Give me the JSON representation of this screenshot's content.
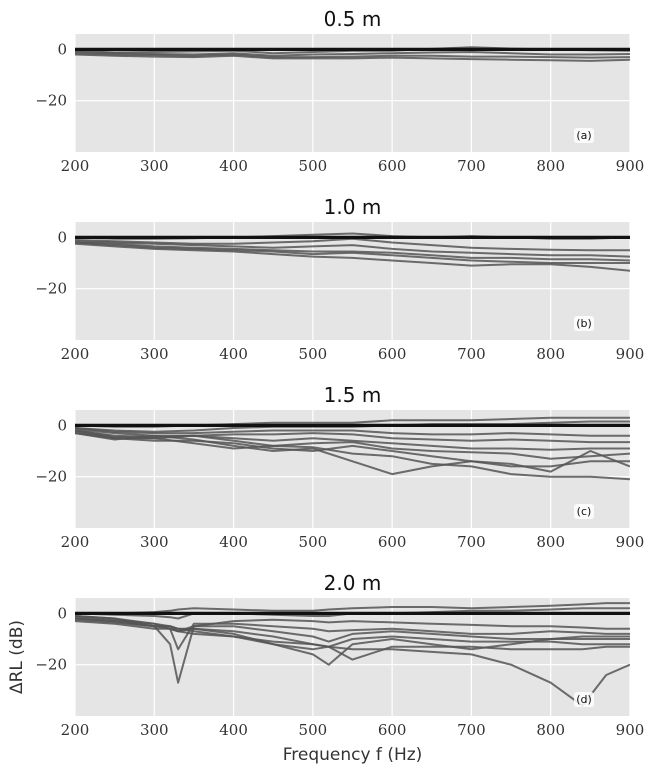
{
  "colors": {
    "panel_bg": "#e5e5e5",
    "grid": "#ffffff",
    "reference_line": "#111111",
    "series_line": "#555555"
  },
  "chart_data": [
    {
      "type": "line",
      "title": "0.5 m",
      "panel_label": "(a)",
      "xlabel": "",
      "ylabel": "",
      "xlim": [
        200,
        900
      ],
      "ylim": [
        -40,
        6
      ],
      "grid": true,
      "xticks": [
        200,
        300,
        400,
        500,
        600,
        700,
        800,
        900
      ],
      "yticks": [
        0,
        -20
      ],
      "ytick_labels": [
        "0",
        "−20"
      ],
      "x": [
        200,
        250,
        300,
        350,
        400,
        450,
        500,
        550,
        600,
        650,
        700,
        750,
        800,
        850,
        900
      ],
      "reference": [
        0,
        0,
        0,
        0,
        0,
        0,
        0,
        0,
        0,
        0,
        0,
        0,
        0,
        0,
        0
      ],
      "series": [
        {
          "values": [
            -0.5,
            -1.2,
            -1.0,
            -0.8,
            -0.5,
            -1.5,
            -1.0,
            -0.5,
            -0.5,
            0.2,
            0.8,
            0.3,
            0,
            -0.3,
            -0.5
          ]
        },
        {
          "values": [
            -1.0,
            -1.5,
            -1.8,
            -2.0,
            -1.5,
            -2.5,
            -2.0,
            -1.8,
            -1.5,
            -1.2,
            -1.0,
            -1.5,
            -2.0,
            -2.0,
            -1.8
          ]
        },
        {
          "values": [
            -1.5,
            -2.0,
            -2.2,
            -2.5,
            -2.0,
            -3.0,
            -3.0,
            -2.8,
            -2.5,
            -2.5,
            -2.8,
            -2.8,
            -3.0,
            -3.2,
            -3.0
          ]
        },
        {
          "values": [
            -2.0,
            -2.5,
            -2.8,
            -3.0,
            -2.5,
            -3.5,
            -3.5,
            -3.5,
            -3.2,
            -3.5,
            -3.8,
            -4.0,
            -4.2,
            -4.5,
            -4.0
          ]
        }
      ]
    },
    {
      "type": "line",
      "title": "1.0 m",
      "panel_label": "(b)",
      "xlabel": "",
      "ylabel": "",
      "xlim": [
        200,
        900
      ],
      "ylim": [
        -40,
        6
      ],
      "grid": true,
      "xticks": [
        200,
        300,
        400,
        500,
        600,
        700,
        800,
        900
      ],
      "yticks": [
        0,
        -20
      ],
      "ytick_labels": [
        "0",
        "−20"
      ],
      "x": [
        200,
        250,
        300,
        350,
        400,
        450,
        500,
        550,
        600,
        650,
        700,
        750,
        800,
        850,
        900
      ],
      "reference": [
        0,
        0,
        0,
        0,
        0,
        0,
        0,
        0,
        0,
        0,
        0,
        0,
        0,
        0,
        0
      ],
      "series": [
        {
          "values": [
            0,
            -0.5,
            -0.5,
            -0.3,
            0,
            0.5,
            1.0,
            1.5,
            0.5,
            0,
            0.5,
            0,
            -0.5,
            -0.5,
            0
          ]
        },
        {
          "values": [
            -1.0,
            -1.5,
            -2.0,
            -2.5,
            -2.5,
            -2.0,
            -1.5,
            -0.5,
            -2.0,
            -3.0,
            -4.0,
            -4.5,
            -4.8,
            -5.0,
            -5.0
          ]
        },
        {
          "values": [
            -1.5,
            -2.0,
            -2.5,
            -3.0,
            -3.5,
            -4.0,
            -3.5,
            -3.0,
            -4.5,
            -5.5,
            -6.0,
            -6.5,
            -7.0,
            -7.0,
            -7.5
          ]
        },
        {
          "values": [
            -2.0,
            -2.5,
            -3.5,
            -4.0,
            -4.5,
            -5.0,
            -5.5,
            -5.5,
            -6.0,
            -7.0,
            -8.0,
            -8.0,
            -8.5,
            -8.5,
            -9.0
          ]
        },
        {
          "values": [
            -2.0,
            -3.0,
            -4.0,
            -4.5,
            -5.0,
            -5.5,
            -6.5,
            -6.0,
            -7.0,
            -8.0,
            -9.0,
            -9.5,
            -10.0,
            -10.0,
            -10.0
          ]
        },
        {
          "values": [
            -2.5,
            -3.5,
            -4.5,
            -5.0,
            -5.5,
            -6.5,
            -7.5,
            -8.0,
            -9.0,
            -10.0,
            -11.0,
            -10.5,
            -10.5,
            -11.5,
            -13.0
          ]
        }
      ]
    },
    {
      "type": "line",
      "title": "1.5 m",
      "panel_label": "(c)",
      "xlabel": "",
      "ylabel": "",
      "xlim": [
        200,
        900
      ],
      "ylim": [
        -40,
        6
      ],
      "grid": true,
      "xticks": [
        200,
        300,
        400,
        500,
        600,
        700,
        800,
        900
      ],
      "yticks": [
        0,
        -20
      ],
      "ytick_labels": [
        "0",
        "−20"
      ],
      "x": [
        200,
        250,
        300,
        350,
        400,
        450,
        500,
        550,
        600,
        650,
        700,
        750,
        800,
        850,
        900
      ],
      "reference": [
        0,
        0,
        0,
        0,
        0,
        0,
        0,
        0,
        0,
        0,
        0,
        0,
        0,
        0,
        0
      ],
      "series": [
        {
          "values": [
            0,
            -0.5,
            -0.5,
            0,
            0.5,
            1.0,
            1.0,
            1.0,
            2.0,
            2.0,
            2.0,
            2.5,
            3.0,
            3.0,
            3.0
          ]
        },
        {
          "values": [
            -1.0,
            -2.0,
            -2.5,
            -2.0,
            -1.0,
            -0.5,
            -0.5,
            -0.5,
            0,
            0.5,
            0.5,
            0.5,
            1.0,
            1.5,
            1.5
          ]
        },
        {
          "values": [
            -1.0,
            -2.5,
            -3.0,
            -3.0,
            -2.5,
            -2.0,
            -2.0,
            -2.0,
            -3.0,
            -3.5,
            -3.5,
            -3.0,
            -3.5,
            -4.0,
            -4.0
          ]
        },
        {
          "values": [
            -1.5,
            -3.0,
            -4.0,
            -4.0,
            -3.5,
            -3.5,
            -3.0,
            -3.5,
            -5.0,
            -5.5,
            -6.0,
            -5.5,
            -6.0,
            -6.5,
            -6.5
          ]
        },
        {
          "values": [
            -2.0,
            -4.0,
            -4.5,
            -4.0,
            -5.0,
            -6.0,
            -5.0,
            -6.0,
            -7.0,
            -8.0,
            -9.0,
            -9.0,
            -9.5,
            -9.0,
            -9.0
          ]
        },
        {
          "values": [
            -2.0,
            -4.5,
            -5.0,
            -4.0,
            -6.0,
            -8.0,
            -7.0,
            -6.5,
            -9.0,
            -10.0,
            -10.5,
            -11.0,
            -13.0,
            -12.0,
            -11.0
          ]
        },
        {
          "values": [
            -2.5,
            -5.0,
            -6.0,
            -6.0,
            -7.0,
            -9.0,
            -10.0,
            -8.0,
            -10.0,
            -12.0,
            -14.0,
            -16.0,
            -16.0,
            -14.0,
            -14.0
          ]
        },
        {
          "values": [
            -3.0,
            -5.5,
            -4.0,
            -5.5,
            -8.0,
            -10.0,
            -9.0,
            -14.0,
            -19.0,
            -16.0,
            -14.0,
            -15.0,
            -18.0,
            -10.0,
            -16.0
          ]
        },
        {
          "values": [
            -3.0,
            -5.0,
            -5.0,
            -7.0,
            -9.0,
            -8.0,
            -8.5,
            -11.0,
            -12.0,
            -15.0,
            -16.0,
            -19.0,
            -20.0,
            -20.0,
            -21.0
          ]
        }
      ]
    },
    {
      "type": "line",
      "title": "2.0 m",
      "panel_label": "(d)",
      "xlabel": "Frequency f (Hz)",
      "ylabel": "ΔRL (dB)",
      "xlim": [
        200,
        900
      ],
      "ylim": [
        -40,
        6
      ],
      "grid": true,
      "xticks": [
        200,
        300,
        400,
        500,
        600,
        700,
        800,
        900
      ],
      "yticks": [
        0,
        -20
      ],
      "ytick_labels": [
        "0",
        "−20"
      ],
      "x": [
        200,
        250,
        300,
        320,
        330,
        350,
        400,
        450,
        500,
        520,
        550,
        600,
        650,
        700,
        750,
        800,
        840,
        870,
        900
      ],
      "reference": [
        0,
        0,
        0,
        0,
        0,
        0,
        0,
        0,
        0,
        0,
        0,
        0,
        0,
        0,
        0,
        0,
        0,
        0,
        0
      ],
      "series": [
        {
          "values": [
            0,
            0,
            0.5,
            1.0,
            1.5,
            2.0,
            1.5,
            1.0,
            1.0,
            1.5,
            2.0,
            2.5,
            2.5,
            2.0,
            2.5,
            3.0,
            3.5,
            4.0,
            4.0
          ]
        },
        {
          "values": [
            0,
            -0.5,
            -1.0,
            -1.5,
            -2.0,
            0,
            0,
            -0.5,
            -1.0,
            -1.0,
            0,
            0,
            0.5,
            1.0,
            1.0,
            1.5,
            2.0,
            2.0,
            2.0
          ]
        },
        {
          "values": [
            -1.0,
            -2.0,
            -5.0,
            -12.0,
            -27.0,
            -5.0,
            -3.0,
            -2.5,
            -3.0,
            -3.5,
            -3.0,
            -3.5,
            -4.0,
            -4.5,
            -5.0,
            -5.0,
            -5.5,
            -6.0,
            -6.0
          ]
        },
        {
          "values": [
            -1.0,
            -2.0,
            -4.0,
            -6.0,
            -14.0,
            -4.0,
            -4.0,
            -5.0,
            -6.0,
            -7.0,
            -6.5,
            -6.0,
            -7.0,
            -8.0,
            -8.0,
            -7.0,
            -7.5,
            -8.0,
            -8.0
          ]
        },
        {
          "values": [
            -1.5,
            -2.5,
            -4.0,
            -5.0,
            -7.0,
            -5.0,
            -5.0,
            -7.0,
            -9.0,
            -11.0,
            -8.0,
            -7.0,
            -8.0,
            -9.0,
            -10.0,
            -10.0,
            -10.0,
            -10.0,
            -10.0
          ]
        },
        {
          "values": [
            -2.0,
            -3.0,
            -5.0,
            -6.0,
            -7.0,
            -6.0,
            -7.0,
            -9.0,
            -12.0,
            -13.0,
            -10.0,
            -9.0,
            -10.0,
            -11.0,
            -11.0,
            -11.0,
            -12.0,
            -12.0,
            -12.0
          ]
        },
        {
          "values": [
            -2.0,
            -3.0,
            -5.0,
            -5.0,
            -6.0,
            -6.0,
            -8.0,
            -12.0,
            -16.0,
            -20.0,
            -12.0,
            -10.0,
            -12.0,
            -14.0,
            -12.0,
            -10.0,
            -9.0,
            -9.0,
            -9.0
          ]
        },
        {
          "values": [
            -2.5,
            -3.5,
            -5.0,
            -5.0,
            -6.0,
            -7.0,
            -9.0,
            -12.0,
            -14.0,
            -13.0,
            -18.0,
            -13.0,
            -13.0,
            -13.0,
            -14.0,
            -14.0,
            -14.0,
            -13.0,
            -13.0
          ]
        },
        {
          "values": [
            -3.0,
            -4.0,
            -6.0,
            -6.0,
            -7.0,
            -8.0,
            -9.0,
            -11.0,
            -12.0,
            -13.0,
            -14.0,
            -14.0,
            -15.0,
            -16.0,
            -20.0,
            -27.0,
            -36.0,
            -24.0,
            -20.0
          ]
        }
      ]
    }
  ]
}
